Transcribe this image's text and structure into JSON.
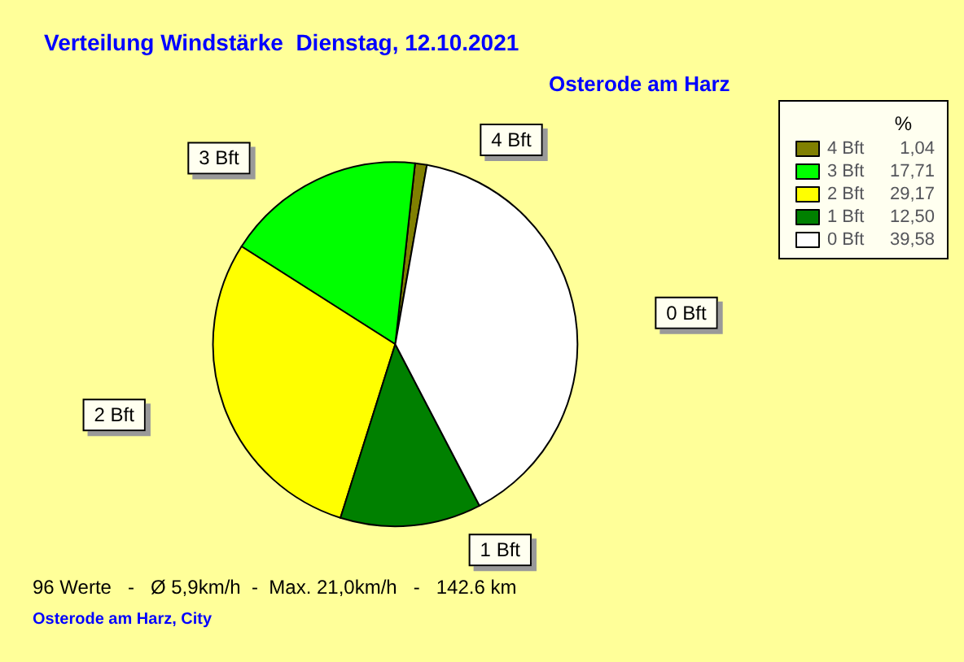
{
  "chart_data": {
    "type": "pie",
    "title": "Verteilung Windstärke  Dienstag, 12.10.2021",
    "subtitle": "Osterode am Harz",
    "categories": [
      "4 Bft",
      "3 Bft",
      "2 Bft",
      "1 Bft",
      "0 Bft"
    ],
    "values": [
      1.04,
      17.71,
      29.17,
      12.5,
      39.58
    ],
    "value_labels": [
      "1,04",
      "17,71",
      "29,17",
      "12,50",
      "39,58"
    ],
    "colors": [
      "#808000",
      "#00ff00",
      "#ffff00",
      "#008000",
      "#ffffff"
    ],
    "legend": "top right",
    "legend_title": "%",
    "annotations": [
      "96 Werte   -   Ø 5,9km/h  -  Max. 21,0km/h   -   142.6 km",
      "Osterode am Harz, City"
    ]
  }
}
